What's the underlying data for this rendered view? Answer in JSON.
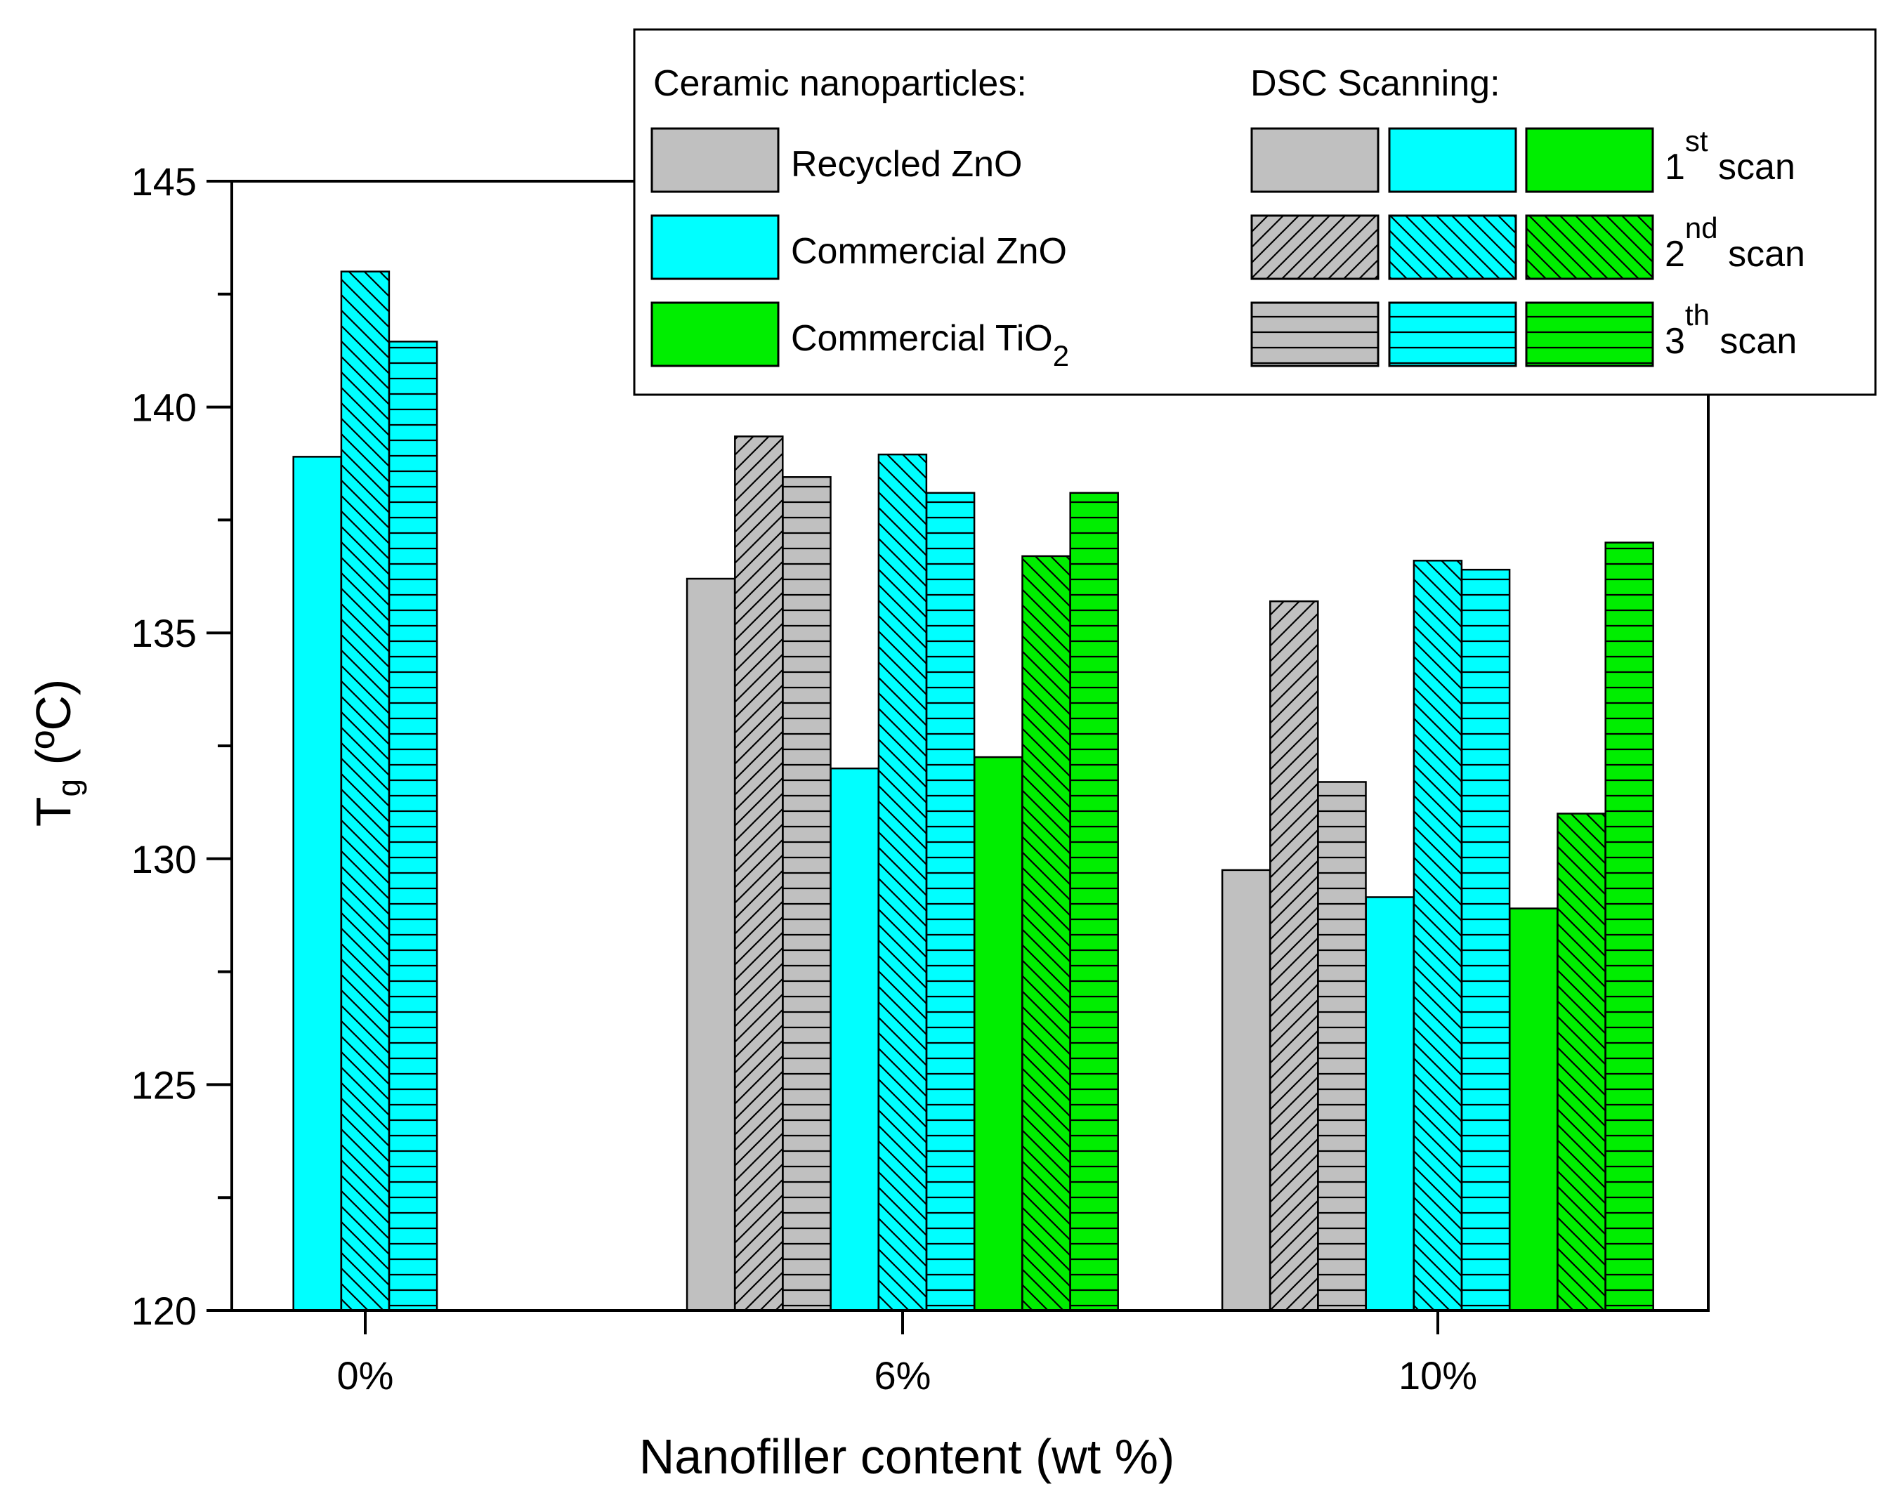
{
  "chart_data": {
    "type": "bar",
    "xlabel": "Nanofiller content (wt %)",
    "ylabel_main": "T",
    "ylabel_sub": "g",
    "ylabel_unit": " (ºC)",
    "ylim": [
      120,
      145
    ],
    "yticks": [
      120,
      125,
      130,
      135,
      140,
      145
    ],
    "categories": [
      "0%",
      "6%",
      "10%"
    ],
    "colors": {
      "recycled_zno": "#c0c0c0",
      "commercial_zno": "#00ffff",
      "commercial_tio2": "#00ee00",
      "outline": "#000000"
    },
    "series": [
      {
        "nanoparticle": "recycled_zno",
        "scan": 1,
        "values": [
          null,
          136.2,
          129.75
        ]
      },
      {
        "nanoparticle": "recycled_zno",
        "scan": 2,
        "values": [
          null,
          139.35,
          135.7
        ]
      },
      {
        "nanoparticle": "recycled_zno",
        "scan": 3,
        "values": [
          null,
          138.45,
          131.7
        ]
      },
      {
        "nanoparticle": "commercial_zno",
        "scan": 1,
        "values": [
          138.9,
          132.0,
          129.15
        ]
      },
      {
        "nanoparticle": "commercial_zno",
        "scan": 2,
        "values": [
          143.0,
          138.95,
          136.6
        ]
      },
      {
        "nanoparticle": "commercial_zno",
        "scan": 3,
        "values": [
          141.45,
          138.1,
          136.4
        ]
      },
      {
        "nanoparticle": "commercial_tio2",
        "scan": 1,
        "values": [
          null,
          132.25,
          128.9
        ]
      },
      {
        "nanoparticle": "commercial_tio2",
        "scan": 2,
        "values": [
          null,
          136.7,
          131.0
        ]
      },
      {
        "nanoparticle": "commercial_tio2",
        "scan": 3,
        "values": [
          null,
          138.1,
          137.0
        ]
      }
    ],
    "legend": {
      "placement": "top-right",
      "nanoparticles_title": "Ceramic nanoparticles:",
      "scanning_title": "DSC Scanning:",
      "nanoparticles": [
        {
          "key": "recycled_zno",
          "label": "Recycled ZnO",
          "sub": ""
        },
        {
          "key": "commercial_zno",
          "label": "Commercial ZnO",
          "sub": ""
        },
        {
          "key": "commercial_tio2",
          "label": "Commercial TiO",
          "sub": "2"
        }
      ],
      "scans": [
        {
          "num": "1",
          "sup": "st",
          "word": " scan"
        },
        {
          "num": "2",
          "sup": "nd",
          "word": " scan"
        },
        {
          "num": "3",
          "sup": "th",
          "word": " scan"
        }
      ]
    }
  }
}
